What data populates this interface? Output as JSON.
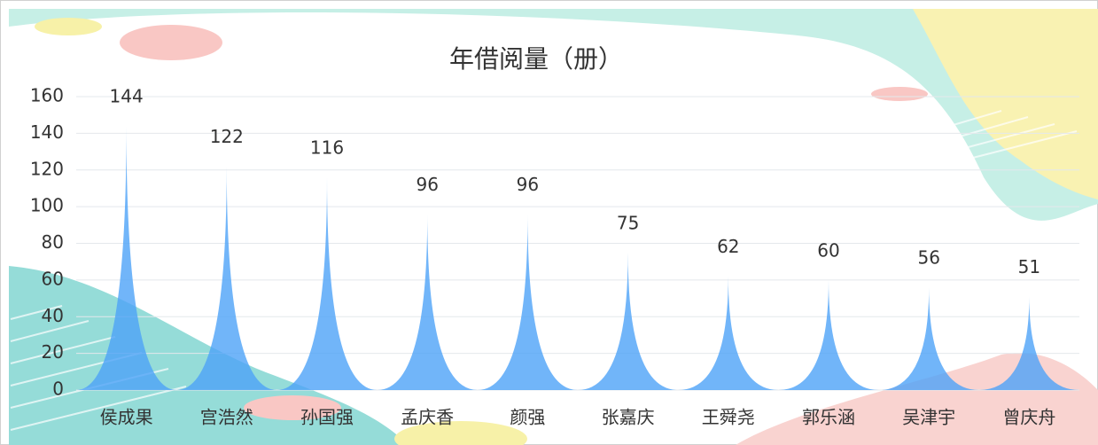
{
  "chart_data": {
    "type": "bar",
    "title": "年借阅量（册）",
    "categories": [
      "侯成果",
      "宫浩然",
      "孙国强",
      "孟庆香",
      "颜强",
      "张嘉庆",
      "王舜尧",
      "郭乐涵",
      "吴津宇",
      "曾庆舟"
    ],
    "values": [
      144,
      122,
      116,
      96,
      96,
      75,
      62,
      60,
      56,
      51
    ],
    "color": "#4da3f7",
    "ylim": [
      0,
      160
    ],
    "yticks": [
      0,
      20,
      40,
      60,
      80,
      100,
      120,
      140,
      160
    ],
    "grid": true
  }
}
